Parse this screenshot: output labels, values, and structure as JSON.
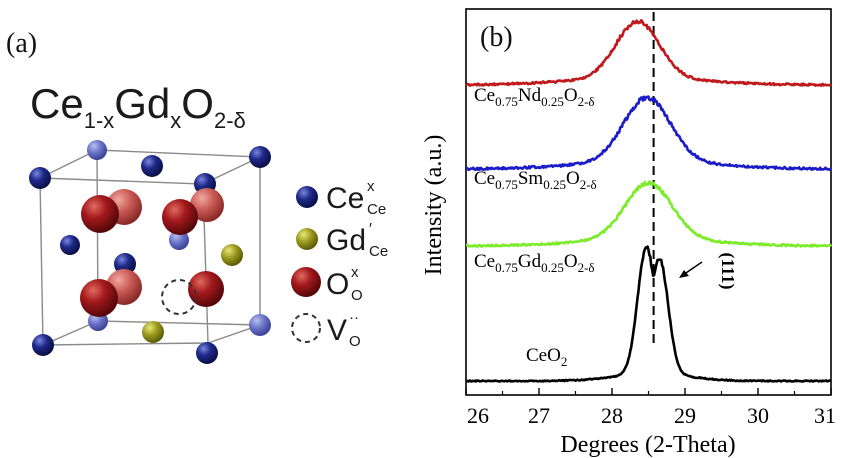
{
  "panel_a": {
    "label": "(a)",
    "formula": {
      "base1": "Ce",
      "sub1": "1-x",
      "base2": "Gd",
      "sub2": "x",
      "base3": "O",
      "sub3": "2-δ"
    },
    "legend": [
      {
        "base": "Ce",
        "sup": "x",
        "sub": "Ce",
        "color": "#1f2a8a"
      },
      {
        "base": "Gd",
        "sup": "′",
        "sub": "Ce",
        "color": "#9b9a1e"
      },
      {
        "base": "O",
        "sup": "x",
        "sub": "O",
        "color": "#a3191c"
      },
      {
        "base": "V",
        "sup": "··",
        "sub": "O",
        "color": "#333333"
      }
    ]
  },
  "panel_b": {
    "label": "(b)",
    "peak_label": "(111)",
    "curve_labels": [
      {
        "base1": "Ce",
        "sub1": "0.75",
        "base2": "Nd",
        "sub2": "0.25",
        "base3": "O",
        "sub3": "2-δ"
      },
      {
        "base1": "Ce",
        "sub1": "0.75",
        "base2": "Sm",
        "sub2": "0.25",
        "base3": "O",
        "sub3": "2-δ"
      },
      {
        "base1": "Ce",
        "sub1": "0.75",
        "base2": "Gd",
        "sub2": "0.25",
        "base3": "O",
        "sub3": "2-δ"
      },
      {
        "base1": "CeO",
        "sub1": "2"
      }
    ]
  },
  "chart_data": {
    "type": "line",
    "xlabel": "Degrees (2-Theta)",
    "ylabel": "Intensity (a.u.)",
    "xlim": [
      26,
      31
    ],
    "xticks": [
      "26",
      "27",
      "28",
      "29",
      "30",
      "31"
    ],
    "yticks_shown": false,
    "reference_line_x": 28.57,
    "series": [
      {
        "name": "Ce0.75Nd0.25O2-δ",
        "color": "#c0191c",
        "offset": 3,
        "peak_x": 28.35,
        "peak_height": 0.55,
        "width": 0.42,
        "noise": 0.018
      },
      {
        "name": "Ce0.75Sm0.25O2-δ",
        "color": "#1b1bc8",
        "offset": 2,
        "peak_x": 28.48,
        "peak_height": 0.62,
        "width": 0.45,
        "noise": 0.02
      },
      {
        "name": "Ce0.75Gd0.25O2-δ",
        "color": "#7cec2a",
        "offset": 1,
        "peak_x": 28.5,
        "peak_height": 0.55,
        "width": 0.45,
        "noise": 0.018
      },
      {
        "name": "CeO2",
        "color": "#000000",
        "offset": 0,
        "peak_x": 28.55,
        "peak_height": 1.15,
        "width": 0.28,
        "noise": 0.01
      }
    ]
  }
}
